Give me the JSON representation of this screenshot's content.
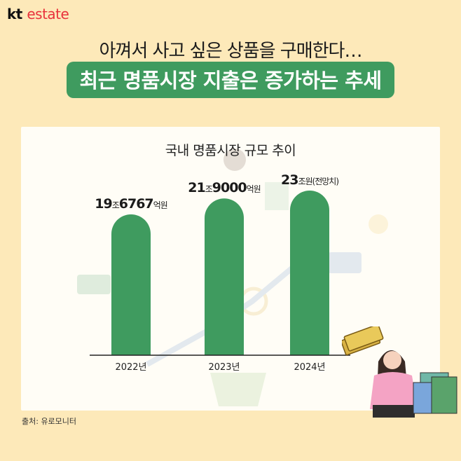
{
  "logo": {
    "kt": "kt",
    "estate": "estate"
  },
  "subtitle": "아껴서 사고 싶은 상품을 구매한다…",
  "headline": "최근 명품시장 지출은 증가하는 추세",
  "source": "출처: 유로모니터",
  "colors": {
    "bar": "#3f9b5f",
    "background": "#fde9b9",
    "panel": "#fffdf6",
    "logo": "#e8323c"
  },
  "chart_data": {
    "type": "bar",
    "title": "국내 명품시장 규모 추이",
    "categories": [
      "2022년",
      "2023년",
      "2024년"
    ],
    "values": [
      19.6767,
      21.9,
      23
    ],
    "value_labels": [
      {
        "big": "19",
        "small1": "조",
        "big2": "6767",
        "small2": "억원"
      },
      {
        "big": "21",
        "small1": "조",
        "big2": "9000",
        "small2": "억원"
      },
      {
        "big": "23",
        "small1": "조원(전망치)",
        "big2": "",
        "small2": ""
      }
    ],
    "xlabel": "",
    "ylabel": "",
    "ylim": [
      0,
      23
    ],
    "grid": false,
    "legend": "none"
  }
}
